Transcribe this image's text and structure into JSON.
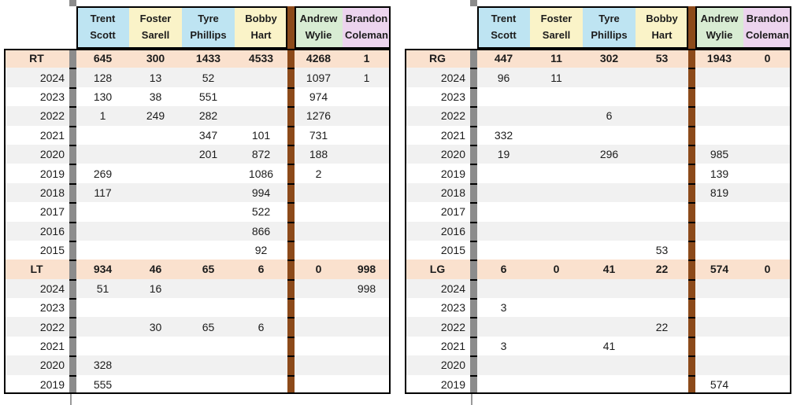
{
  "players": [
    {
      "first": "Trent",
      "last": "Scott",
      "color": "#BEE4F2"
    },
    {
      "first": "Foster",
      "last": "Sarell",
      "color": "#FAF3C8"
    },
    {
      "first": "Tyre",
      "last": "Phillips",
      "color": "#BEE4F2"
    },
    {
      "first": "Bobby",
      "last": "Hart",
      "color": "#FAF3C8"
    },
    {
      "first": "Andrew",
      "last": "Wylie",
      "color": "#D8ECD3"
    },
    {
      "first": "Brandon",
      "last": "Coleman",
      "color": "#ECD4EE"
    }
  ],
  "tables": [
    {
      "sections": [
        {
          "position": "RT",
          "totals": [
            "645",
            "300",
            "1433",
            "4533",
            "4268",
            "1"
          ],
          "rows": [
            {
              "year": "2024",
              "values": [
                "128",
                "13",
                "52",
                "",
                "1097",
                "1"
              ]
            },
            {
              "year": "2023",
              "values": [
                "130",
                "38",
                "551",
                "",
                "974",
                ""
              ]
            },
            {
              "year": "2022",
              "values": [
                "1",
                "249",
                "282",
                "",
                "1276",
                ""
              ]
            },
            {
              "year": "2021",
              "values": [
                "",
                "",
                "347",
                "101",
                "731",
                ""
              ]
            },
            {
              "year": "2020",
              "values": [
                "",
                "",
                "201",
                "872",
                "188",
                ""
              ]
            },
            {
              "year": "2019",
              "values": [
                "269",
                "",
                "",
                "1086",
                "2",
                ""
              ]
            },
            {
              "year": "2018",
              "values": [
                "117",
                "",
                "",
                "994",
                "",
                ""
              ]
            },
            {
              "year": "2017",
              "values": [
                "",
                "",
                "",
                "522",
                "",
                ""
              ]
            },
            {
              "year": "2016",
              "values": [
                "",
                "",
                "",
                "866",
                "",
                ""
              ]
            },
            {
              "year": "2015",
              "values": [
                "",
                "",
                "",
                "92",
                "",
                ""
              ]
            }
          ]
        },
        {
          "position": "LT",
          "totals": [
            "934",
            "46",
            "65",
            "6",
            "0",
            "998"
          ],
          "rows": [
            {
              "year": "2024",
              "values": [
                "51",
                "16",
                "",
                "",
                "",
                "998"
              ]
            },
            {
              "year": "2023",
              "values": [
                "",
                "",
                "",
                "",
                "",
                ""
              ]
            },
            {
              "year": "2022",
              "values": [
                "",
                "30",
                "65",
                "6",
                "",
                ""
              ]
            },
            {
              "year": "2021",
              "values": [
                "",
                "",
                "",
                "",
                "",
                ""
              ]
            },
            {
              "year": "2020",
              "values": [
                "328",
                "",
                "",
                "",
                "",
                ""
              ]
            },
            {
              "year": "2019",
              "values": [
                "555",
                "",
                "",
                "",
                "",
                ""
              ]
            }
          ]
        }
      ]
    },
    {
      "sections": [
        {
          "position": "RG",
          "totals": [
            "447",
            "11",
            "302",
            "53",
            "1943",
            "0"
          ],
          "rows": [
            {
              "year": "2024",
              "values": [
                "96",
                "11",
                "",
                "",
                "",
                ""
              ]
            },
            {
              "year": "2023",
              "values": [
                "",
                "",
                "",
                "",
                "",
                ""
              ]
            },
            {
              "year": "2022",
              "values": [
                "",
                "",
                "6",
                "",
                "",
                ""
              ]
            },
            {
              "year": "2021",
              "values": [
                "332",
                "",
                "",
                "",
                "",
                ""
              ]
            },
            {
              "year": "2020",
              "values": [
                "19",
                "",
                "296",
                "",
                "985",
                ""
              ]
            },
            {
              "year": "2019",
              "values": [
                "",
                "",
                "",
                "",
                "139",
                ""
              ]
            },
            {
              "year": "2018",
              "values": [
                "",
                "",
                "",
                "",
                "819",
                ""
              ]
            },
            {
              "year": "2017",
              "values": [
                "",
                "",
                "",
                "",
                "",
                ""
              ]
            },
            {
              "year": "2016",
              "values": [
                "",
                "",
                "",
                "",
                "",
                ""
              ]
            },
            {
              "year": "2015",
              "values": [
                "",
                "",
                "",
                "53",
                "",
                ""
              ]
            }
          ]
        },
        {
          "position": "LG",
          "totals": [
            "6",
            "0",
            "41",
            "22",
            "574",
            "0"
          ],
          "rows": [
            {
              "year": "2024",
              "values": [
                "",
                "",
                "",
                "",
                "",
                ""
              ]
            },
            {
              "year": "2023",
              "values": [
                "3",
                "",
                "",
                "",
                "",
                ""
              ]
            },
            {
              "year": "2022",
              "values": [
                "",
                "",
                "",
                "22",
                "",
                ""
              ]
            },
            {
              "year": "2021",
              "values": [
                "3",
                "",
                "41",
                "",
                "",
                ""
              ]
            },
            {
              "year": "2020",
              "values": [
                "",
                "",
                "",
                "",
                "",
                ""
              ]
            },
            {
              "year": "2019",
              "values": [
                "",
                "",
                "",
                "",
                "574",
                ""
              ]
            }
          ]
        }
      ]
    }
  ],
  "colors": {
    "position_row_bg": "#FAE1CE",
    "stripe_row_bg": "#F1F1F1",
    "white_row_bg": "#FFFFFF",
    "gray_separator": "#8C8C8C",
    "brown_separator": "#8C4A1A",
    "gridline_gray": "#9A9A9A",
    "table_border": "#000000",
    "text": "#1C1C1C"
  }
}
